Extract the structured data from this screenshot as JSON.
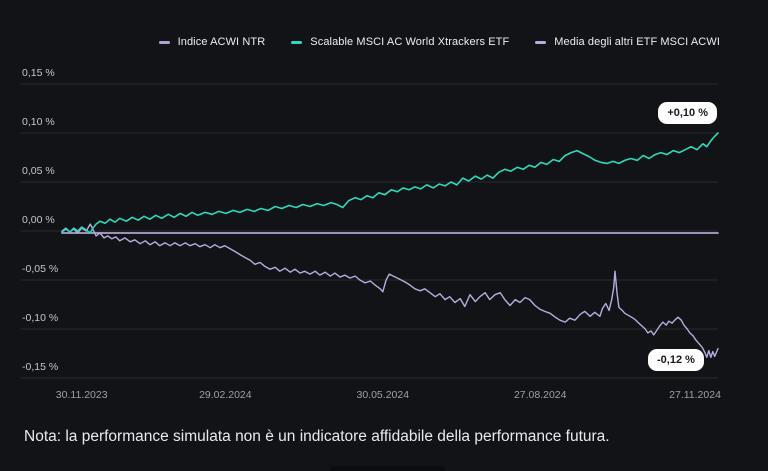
{
  "note": "Nota: la performance simulata non è un indicatore affidabile della performance futura.",
  "annotations": {
    "top": "+0,10 %",
    "bottom": "-0,12 %"
  },
  "colors": {
    "background": "#121317",
    "gridline": "#26282d",
    "badge_background": "#ffffff",
    "badge_text": "#17191d"
  },
  "chart_data": {
    "type": "line",
    "title": "",
    "xlabel": "",
    "ylabel": "",
    "y_unit": "%",
    "ylim": [
      -0.15,
      0.15
    ],
    "grid": "horizontal-only",
    "legend_position": "top-right",
    "y_ticks": [
      {
        "label": "0,15 %",
        "value": 0.15
      },
      {
        "label": "0,10 %",
        "value": 0.1
      },
      {
        "label": "0,05 %",
        "value": 0.05
      },
      {
        "label": "0,00 %",
        "value": 0.0
      },
      {
        "label": "-0,05 %",
        "value": -0.05
      },
      {
        "label": "-0,10 %",
        "value": -0.1
      },
      {
        "label": "-0,15 %",
        "value": -0.15
      }
    ],
    "x_ticks": [
      {
        "label": "30.11.2023",
        "t": 0.03
      },
      {
        "label": "29.02.2024",
        "t": 0.249
      },
      {
        "label": "30.05.2024",
        "t": 0.489
      },
      {
        "label": "27.08.2024",
        "t": 0.729
      },
      {
        "label": "27.11.2024",
        "t": 0.965
      }
    ],
    "series": [
      {
        "name": "Indice ACWI NTR",
        "color": "#b1a3cf",
        "end_value_pct": 0.0,
        "stroke_width": 1.8,
        "z": 0,
        "points": [
          [
            0.0,
            -0.002
          ],
          [
            1.0,
            -0.002
          ]
        ]
      },
      {
        "name": "Scalable MSCI AC World Xtrackers ETF",
        "color": "#2ed8b8",
        "end_value_pct": 0.1,
        "stroke_width": 1.6,
        "z": 2,
        "points": [
          [
            0.0,
            -0.001
          ],
          [
            0.006,
            0.002
          ],
          [
            0.012,
            -0.001
          ],
          [
            0.018,
            0.003
          ],
          [
            0.024,
            0.0
          ],
          [
            0.03,
            0.004
          ],
          [
            0.037,
            0.001
          ],
          [
            0.043,
            -0.002
          ],
          [
            0.047,
            0.003
          ],
          [
            0.052,
            0.007
          ],
          [
            0.058,
            0.01
          ],
          [
            0.066,
            0.008
          ],
          [
            0.073,
            0.012
          ],
          [
            0.081,
            0.009
          ],
          [
            0.088,
            0.013
          ],
          [
            0.098,
            0.01
          ],
          [
            0.107,
            0.014
          ],
          [
            0.116,
            0.011
          ],
          [
            0.125,
            0.015
          ],
          [
            0.134,
            0.012
          ],
          [
            0.143,
            0.016
          ],
          [
            0.152,
            0.013
          ],
          [
            0.162,
            0.017
          ],
          [
            0.171,
            0.014
          ],
          [
            0.18,
            0.018
          ],
          [
            0.189,
            0.015
          ],
          [
            0.198,
            0.019
          ],
          [
            0.207,
            0.016
          ],
          [
            0.218,
            0.019
          ],
          [
            0.229,
            0.017
          ],
          [
            0.239,
            0.02
          ],
          [
            0.25,
            0.018
          ],
          [
            0.261,
            0.021
          ],
          [
            0.271,
            0.019
          ],
          [
            0.282,
            0.022
          ],
          [
            0.293,
            0.02
          ],
          [
            0.303,
            0.023
          ],
          [
            0.314,
            0.021
          ],
          [
            0.325,
            0.025
          ],
          [
            0.335,
            0.023
          ],
          [
            0.346,
            0.026
          ],
          [
            0.357,
            0.024
          ],
          [
            0.367,
            0.027
          ],
          [
            0.378,
            0.025
          ],
          [
            0.389,
            0.028
          ],
          [
            0.399,
            0.026
          ],
          [
            0.41,
            0.029
          ],
          [
            0.419,
            0.027
          ],
          [
            0.428,
            0.024
          ],
          [
            0.437,
            0.031
          ],
          [
            0.447,
            0.034
          ],
          [
            0.456,
            0.032
          ],
          [
            0.465,
            0.036
          ],
          [
            0.474,
            0.034
          ],
          [
            0.483,
            0.039
          ],
          [
            0.492,
            0.037
          ],
          [
            0.502,
            0.042
          ],
          [
            0.511,
            0.04
          ],
          [
            0.52,
            0.044
          ],
          [
            0.529,
            0.042
          ],
          [
            0.538,
            0.045
          ],
          [
            0.547,
            0.043
          ],
          [
            0.556,
            0.047
          ],
          [
            0.566,
            0.044
          ],
          [
            0.575,
            0.048
          ],
          [
            0.584,
            0.046
          ],
          [
            0.593,
            0.05
          ],
          [
            0.602,
            0.047
          ],
          [
            0.611,
            0.054
          ],
          [
            0.62,
            0.051
          ],
          [
            0.63,
            0.056
          ],
          [
            0.639,
            0.053
          ],
          [
            0.648,
            0.057
          ],
          [
            0.657,
            0.054
          ],
          [
            0.666,
            0.06
          ],
          [
            0.675,
            0.063
          ],
          [
            0.684,
            0.061
          ],
          [
            0.694,
            0.065
          ],
          [
            0.703,
            0.063
          ],
          [
            0.712,
            0.067
          ],
          [
            0.721,
            0.065
          ],
          [
            0.73,
            0.07
          ],
          [
            0.739,
            0.068
          ],
          [
            0.749,
            0.073
          ],
          [
            0.758,
            0.071
          ],
          [
            0.767,
            0.077
          ],
          [
            0.776,
            0.08
          ],
          [
            0.785,
            0.082
          ],
          [
            0.794,
            0.079
          ],
          [
            0.803,
            0.076
          ],
          [
            0.813,
            0.072
          ],
          [
            0.822,
            0.07
          ],
          [
            0.831,
            0.069
          ],
          [
            0.84,
            0.071
          ],
          [
            0.849,
            0.069
          ],
          [
            0.858,
            0.072
          ],
          [
            0.867,
            0.074
          ],
          [
            0.877,
            0.072
          ],
          [
            0.886,
            0.077
          ],
          [
            0.895,
            0.074
          ],
          [
            0.904,
            0.078
          ],
          [
            0.913,
            0.08
          ],
          [
            0.922,
            0.078
          ],
          [
            0.932,
            0.082
          ],
          [
            0.941,
            0.08
          ],
          [
            0.95,
            0.083
          ],
          [
            0.959,
            0.086
          ],
          [
            0.968,
            0.083
          ],
          [
            0.977,
            0.089
          ],
          [
            0.983,
            0.086
          ],
          [
            0.989,
            0.092
          ],
          [
            0.994,
            0.096
          ],
          [
            1.0,
            0.1
          ]
        ]
      },
      {
        "name": "Media degli altri ETF MSCI ACWI",
        "color": "#b3aedd",
        "end_value_pct": -0.12,
        "stroke_width": 1.4,
        "z": 1,
        "points": [
          [
            0.0,
            0.0
          ],
          [
            0.006,
            0.003
          ],
          [
            0.012,
            -0.001
          ],
          [
            0.018,
            0.002
          ],
          [
            0.024,
            -0.002
          ],
          [
            0.03,
            0.003
          ],
          [
            0.037,
            0.0
          ],
          [
            0.043,
            0.007
          ],
          [
            0.047,
            0.002
          ],
          [
            0.052,
            -0.005
          ],
          [
            0.058,
            -0.002
          ],
          [
            0.064,
            -0.007
          ],
          [
            0.07,
            -0.005
          ],
          [
            0.076,
            -0.008
          ],
          [
            0.082,
            -0.006
          ],
          [
            0.088,
            -0.01
          ],
          [
            0.096,
            -0.007
          ],
          [
            0.104,
            -0.011
          ],
          [
            0.111,
            -0.009
          ],
          [
            0.119,
            -0.013
          ],
          [
            0.127,
            -0.01
          ],
          [
            0.134,
            -0.014
          ],
          [
            0.142,
            -0.011
          ],
          [
            0.149,
            -0.015
          ],
          [
            0.157,
            -0.012
          ],
          [
            0.165,
            -0.015
          ],
          [
            0.172,
            -0.012
          ],
          [
            0.18,
            -0.015
          ],
          [
            0.188,
            -0.012
          ],
          [
            0.195,
            -0.015
          ],
          [
            0.203,
            -0.013
          ],
          [
            0.21,
            -0.016
          ],
          [
            0.218,
            -0.014
          ],
          [
            0.226,
            -0.017
          ],
          [
            0.233,
            -0.014
          ],
          [
            0.241,
            -0.017
          ],
          [
            0.248,
            -0.015
          ],
          [
            0.256,
            -0.018
          ],
          [
            0.264,
            -0.021
          ],
          [
            0.271,
            -0.024
          ],
          [
            0.279,
            -0.027
          ],
          [
            0.287,
            -0.03
          ],
          [
            0.294,
            -0.034
          ],
          [
            0.302,
            -0.032
          ],
          [
            0.309,
            -0.036
          ],
          [
            0.317,
            -0.039
          ],
          [
            0.325,
            -0.037
          ],
          [
            0.332,
            -0.041
          ],
          [
            0.34,
            -0.038
          ],
          [
            0.348,
            -0.042
          ],
          [
            0.355,
            -0.039
          ],
          [
            0.363,
            -0.043
          ],
          [
            0.37,
            -0.041
          ],
          [
            0.378,
            -0.044
          ],
          [
            0.386,
            -0.041
          ],
          [
            0.393,
            -0.045
          ],
          [
            0.401,
            -0.042
          ],
          [
            0.409,
            -0.046
          ],
          [
            0.416,
            -0.043
          ],
          [
            0.424,
            -0.047
          ],
          [
            0.431,
            -0.045
          ],
          [
            0.439,
            -0.048
          ],
          [
            0.447,
            -0.046
          ],
          [
            0.454,
            -0.05
          ],
          [
            0.462,
            -0.053
          ],
          [
            0.47,
            -0.051
          ],
          [
            0.477,
            -0.055
          ],
          [
            0.485,
            -0.059
          ],
          [
            0.489,
            -0.062
          ],
          [
            0.494,
            -0.05
          ],
          [
            0.499,
            -0.044
          ],
          [
            0.505,
            -0.046
          ],
          [
            0.511,
            -0.048
          ],
          [
            0.517,
            -0.05
          ],
          [
            0.523,
            -0.052
          ],
          [
            0.53,
            -0.055
          ],
          [
            0.538,
            -0.059
          ],
          [
            0.546,
            -0.061
          ],
          [
            0.553,
            -0.059
          ],
          [
            0.561,
            -0.063
          ],
          [
            0.569,
            -0.067
          ],
          [
            0.576,
            -0.064
          ],
          [
            0.584,
            -0.07
          ],
          [
            0.591,
            -0.067
          ],
          [
            0.599,
            -0.073
          ],
          [
            0.607,
            -0.069
          ],
          [
            0.614,
            -0.077
          ],
          [
            0.622,
            -0.065
          ],
          [
            0.63,
            -0.072
          ],
          [
            0.637,
            -0.067
          ],
          [
            0.645,
            -0.063
          ],
          [
            0.652,
            -0.07
          ],
          [
            0.66,
            -0.065
          ],
          [
            0.668,
            -0.063
          ],
          [
            0.675,
            -0.07
          ],
          [
            0.683,
            -0.076
          ],
          [
            0.691,
            -0.07
          ],
          [
            0.698,
            -0.073
          ],
          [
            0.706,
            -0.068
          ],
          [
            0.713,
            -0.07
          ],
          [
            0.721,
            -0.076
          ],
          [
            0.729,
            -0.08
          ],
          [
            0.736,
            -0.082
          ],
          [
            0.744,
            -0.084
          ],
          [
            0.752,
            -0.088
          ],
          [
            0.759,
            -0.091
          ],
          [
            0.767,
            -0.093
          ],
          [
            0.774,
            -0.089
          ],
          [
            0.782,
            -0.091
          ],
          [
            0.79,
            -0.085
          ],
          [
            0.797,
            -0.082
          ],
          [
            0.805,
            -0.087
          ],
          [
            0.812,
            -0.083
          ],
          [
            0.82,
            -0.087
          ],
          [
            0.824,
            -0.079
          ],
          [
            0.829,
            -0.074
          ],
          [
            0.834,
            -0.081
          ],
          [
            0.838,
            -0.07
          ],
          [
            0.841,
            -0.058
          ],
          [
            0.843,
            -0.041
          ],
          [
            0.846,
            -0.063
          ],
          [
            0.849,
            -0.078
          ],
          [
            0.854,
            -0.081
          ],
          [
            0.858,
            -0.084
          ],
          [
            0.866,
            -0.087
          ],
          [
            0.873,
            -0.09
          ],
          [
            0.881,
            -0.095
          ],
          [
            0.889,
            -0.1
          ],
          [
            0.893,
            -0.104
          ],
          [
            0.898,
            -0.102
          ],
          [
            0.902,
            -0.106
          ],
          [
            0.907,
            -0.101
          ],
          [
            0.911,
            -0.097
          ],
          [
            0.916,
            -0.093
          ],
          [
            0.921,
            -0.096
          ],
          [
            0.925,
            -0.092
          ],
          [
            0.93,
            -0.094
          ],
          [
            0.934,
            -0.091
          ],
          [
            0.939,
            -0.088
          ],
          [
            0.944,
            -0.091
          ],
          [
            0.948,
            -0.096
          ],
          [
            0.953,
            -0.1
          ],
          [
            0.957,
            -0.104
          ],
          [
            0.962,
            -0.107
          ],
          [
            0.966,
            -0.111
          ],
          [
            0.971,
            -0.115
          ],
          [
            0.976,
            -0.119
          ],
          [
            0.98,
            -0.124
          ],
          [
            0.983,
            -0.129
          ],
          [
            0.986,
            -0.122
          ],
          [
            0.989,
            -0.129
          ],
          [
            0.992,
            -0.123
          ],
          [
            0.995,
            -0.128
          ],
          [
            1.0,
            -0.12
          ]
        ]
      }
    ]
  }
}
